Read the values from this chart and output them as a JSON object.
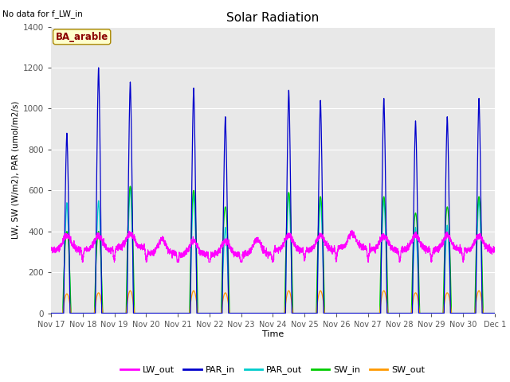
{
  "title": "Solar Radiation",
  "note": "No data for f_LW_in",
  "ylabel": "LW, SW (W/m2), PAR (umol/m2/s)",
  "xlabel": "Time",
  "site_label": "BA_arable",
  "ylim": [
    0,
    1400
  ],
  "colors": {
    "LW_out": "#ff00ff",
    "PAR_in": "#0000cc",
    "PAR_out": "#00cccc",
    "SW_in": "#00cc00",
    "SW_out": "#ff9900"
  },
  "plot_bg": "#e8e8e8",
  "lw_out_base": 310,
  "day_peaks": {
    "PAR_in": [
      880,
      1200,
      1130,
      0,
      1100,
      960,
      0,
      1090,
      1040,
      0,
      1050,
      940,
      960,
      1050
    ],
    "PAR_out": [
      540,
      550,
      620,
      0,
      590,
      420,
      0,
      590,
      560,
      0,
      560,
      420,
      430,
      560
    ],
    "SW_in": [
      400,
      400,
      620,
      0,
      600,
      520,
      0,
      590,
      570,
      0,
      570,
      490,
      520,
      570
    ],
    "SW_out": [
      95,
      100,
      110,
      0,
      110,
      100,
      0,
      110,
      110,
      0,
      110,
      100,
      100,
      110
    ]
  }
}
